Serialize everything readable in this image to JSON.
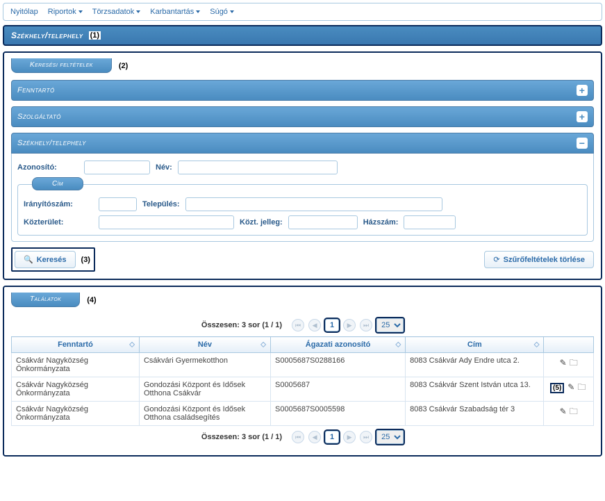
{
  "menubar": {
    "items": [
      {
        "label": "Nyitólap",
        "has_dropdown": false
      },
      {
        "label": "Riportok",
        "has_dropdown": true
      },
      {
        "label": "Törzsadatok",
        "has_dropdown": true
      },
      {
        "label": "Karbantartás",
        "has_dropdown": true
      },
      {
        "label": "Súgó",
        "has_dropdown": true
      }
    ]
  },
  "page_title": {
    "text": "Székhely/telephely",
    "annotation": "(1)"
  },
  "search_section": {
    "tab_label": "Keresési feltételek",
    "annotation": "(2)",
    "panels": {
      "fenntarto": {
        "title": "Fenntartó",
        "collapsed": true
      },
      "szolgaltato": {
        "title": "Szolgáltató",
        "collapsed": true
      },
      "szekhely": {
        "title": "Székhely/telephely",
        "collapsed": false,
        "fields": {
          "azonosito_label": "Azonosító:",
          "nev_label": "Név:"
        },
        "cim_group": {
          "title": "Cím",
          "iranyitoszam_label": "Irányítószám:",
          "telepules_label": "Település:",
          "kozterulet_label": "Közterület:",
          "kozt_jelleg_label": "Közt. jelleg:",
          "hazszam_label": "Házszám:"
        }
      }
    },
    "actions": {
      "search_label": "Keresés",
      "search_annotation": "(3)",
      "clear_label": "Szűrőfeltételek törlése"
    }
  },
  "results_section": {
    "tab_label": "Találatok",
    "annotation": "(4)",
    "pager": {
      "summary_prefix": "Összesen: ",
      "total_rows": 3,
      "rows_word": "sor",
      "page_info": "(1 / 1)",
      "current_page": "1",
      "page_size": "25"
    },
    "columns": [
      "Fenntartó",
      "Név",
      "Ágazati azonosító",
      "Cím",
      ""
    ],
    "rows": [
      {
        "fenntarto": "Csákvár Nagyközség Önkormányzata",
        "nev": "Csákvári Gyermekotthon",
        "agazati": "S0005687S0288166",
        "cim": "8083 Csákvár Ady Endre utca 2.",
        "annotation": null
      },
      {
        "fenntarto": "Csákvár Nagyközség Önkormányzata",
        "nev": "Gondozási Központ és Idősek Otthona Csákvár",
        "agazati": "S0005687",
        "cim": "8083 Csákvár Szent István utca 13.",
        "annotation": "(5)"
      },
      {
        "fenntarto": "Csákvár Nagyközség Önkormányzata",
        "nev": "Gondozási Központ és Idősek Otthona családsegítés",
        "agazati": "S0005687S0005598",
        "cim": "8083 Csákvár Szabadság tér 3",
        "annotation": null
      }
    ]
  },
  "colors": {
    "primary": "#4a8cc0",
    "dark_border": "#0a2a5a",
    "link": "#2a6aa8",
    "light_border": "#a8c8e0"
  }
}
